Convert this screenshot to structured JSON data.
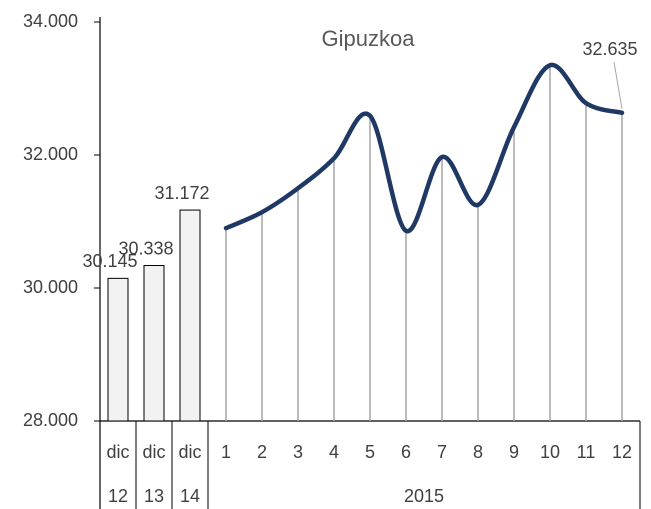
{
  "chart_data": {
    "type": "bar-line",
    "title": "Gipuzkoa",
    "categories": [
      "dic",
      "dic",
      "dic",
      "1",
      "2",
      "3",
      "4",
      "5",
      "6",
      "7",
      "8",
      "9",
      "10",
      "11",
      "12"
    ],
    "category_groups": [
      "12",
      "13",
      "14",
      "2015",
      null,
      null,
      null,
      null,
      null,
      null,
      null,
      null,
      null,
      null,
      null
    ],
    "series": [
      {
        "type": "bar",
        "color": "#f2f2f2",
        "values": [
          30145,
          30338,
          31172,
          null,
          null,
          null,
          null,
          null,
          null,
          null,
          null,
          null,
          null,
          null,
          null
        ],
        "value_labels": [
          "30.145",
          "30.338",
          "31.172",
          null,
          null,
          null,
          null,
          null,
          null,
          null,
          null,
          null,
          null,
          null,
          null
        ]
      },
      {
        "type": "line",
        "color": "#203864",
        "drop_lines": true,
        "values": [
          null,
          null,
          null,
          30900,
          31140,
          31500,
          31950,
          32590,
          30860,
          31970,
          31250,
          32420,
          33350,
          32780,
          32635
        ],
        "value_labels": [
          null,
          null,
          null,
          null,
          null,
          null,
          null,
          null,
          null,
          null,
          null,
          null,
          null,
          null,
          "32.635"
        ]
      }
    ],
    "ylim": [
      28000,
      34000
    ],
    "yticks": [
      {
        "value": 28000,
        "label": "28.000"
      },
      {
        "value": 30000,
        "label": "30.000"
      },
      {
        "value": 32000,
        "label": "32.000"
      },
      {
        "value": 34000,
        "label": "34.000"
      }
    ]
  }
}
